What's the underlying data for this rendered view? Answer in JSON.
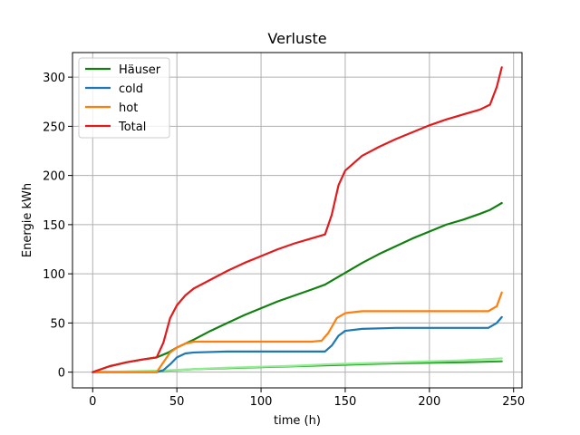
{
  "chart_data": {
    "type": "line",
    "title": "Verluste",
    "xlabel": "time (h)",
    "ylabel": "Energie kWh",
    "xlim": [
      -12,
      255
    ],
    "ylim": [
      -16,
      325
    ],
    "xticks": [
      0,
      50,
      100,
      150,
      200,
      250
    ],
    "yticks": [
      0,
      50,
      100,
      150,
      200,
      250,
      300
    ],
    "grid": true,
    "legend_position": "upper-left",
    "series": [
      {
        "name": "Häuser",
        "color": "#118011",
        "x": [
          0,
          10,
          20,
          30,
          38,
          45,
          50,
          60,
          70,
          80,
          90,
          100,
          110,
          120,
          130,
          138,
          145,
          150,
          160,
          170,
          180,
          190,
          200,
          210,
          220,
          230,
          236,
          240,
          243
        ],
        "y": [
          0,
          6,
          10,
          13,
          15,
          20,
          25,
          33,
          42,
          50,
          58,
          65,
          72,
          78,
          84,
          89,
          96,
          101,
          111,
          120,
          128,
          136,
          143,
          150,
          155,
          161,
          165,
          169,
          172
        ]
      },
      {
        "name": "cold",
        "color": "#1f77b4",
        "x": [
          0,
          38,
          42,
          46,
          50,
          55,
          60,
          80,
          100,
          120,
          130,
          138,
          142,
          146,
          150,
          160,
          180,
          200,
          220,
          235,
          240,
          243
        ],
        "y": [
          0,
          0,
          2,
          8,
          15,
          19,
          20,
          21,
          21,
          21,
          21,
          21,
          27,
          37,
          42,
          44,
          45,
          45,
          45,
          45,
          50,
          56
        ]
      },
      {
        "name": "hot",
        "color": "#ff7f0e",
        "x": [
          0,
          38,
          42,
          46,
          50,
          55,
          60,
          80,
          100,
          120,
          130,
          136,
          140,
          145,
          150,
          160,
          180,
          200,
          220,
          235,
          240,
          243
        ],
        "y": [
          0,
          0,
          10,
          20,
          25,
          29,
          31,
          31,
          31,
          31,
          31,
          32,
          40,
          55,
          60,
          62,
          62,
          62,
          62,
          62,
          67,
          81
        ]
      },
      {
        "name": "Total",
        "color": "#e31a1c",
        "x": [
          0,
          10,
          20,
          30,
          38,
          42,
          46,
          50,
          55,
          60,
          70,
          80,
          90,
          100,
          110,
          120,
          130,
          138,
          142,
          146,
          150,
          160,
          170,
          180,
          190,
          200,
          210,
          220,
          230,
          236,
          240,
          243
        ],
        "y": [
          0,
          6,
          10,
          13,
          15,
          30,
          55,
          68,
          78,
          85,
          94,
          103,
          111,
          118,
          125,
          131,
          136,
          140,
          160,
          190,
          205,
          220,
          229,
          237,
          244,
          251,
          257,
          262,
          267,
          272,
          290,
          310
        ]
      },
      {
        "color": "#2ca02c",
        "x": [
          0,
          40,
          60,
          80,
          100,
          120,
          140,
          160,
          180,
          200,
          220,
          243
        ],
        "y": [
          0,
          1,
          3,
          4,
          5,
          6,
          7,
          8,
          9,
          9.5,
          10,
          11
        ]
      },
      {
        "color": "#90ee90",
        "x": [
          0,
          40,
          60,
          80,
          100,
          120,
          140,
          160,
          180,
          200,
          220,
          243
        ],
        "y": [
          0,
          1.5,
          3,
          4.5,
          5.5,
          6.5,
          8,
          9,
          10,
          11,
          12,
          14
        ]
      }
    ]
  }
}
